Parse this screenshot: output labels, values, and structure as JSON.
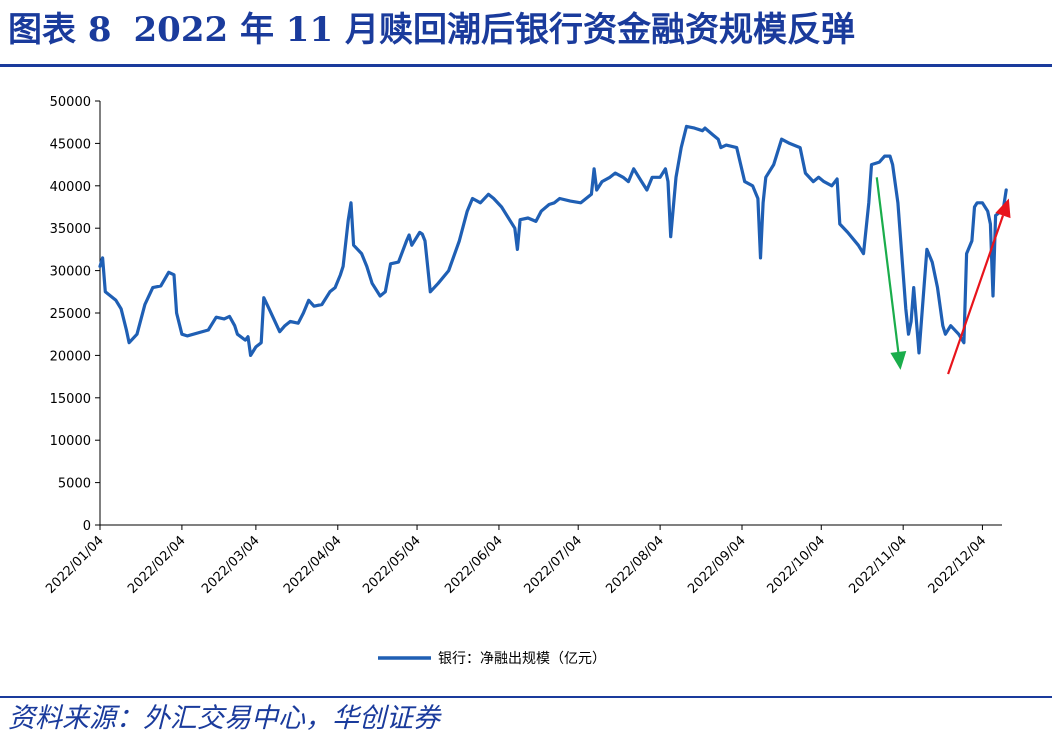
{
  "title": {
    "figure_label": "图表 8",
    "text": "2022 年 11 月赎回潮后银行资金融资规模反弹"
  },
  "source": "资料来源：外汇交易中心，华创证券",
  "colors": {
    "series": "#1f5fb4",
    "down_arrow": "#1aad4b",
    "up_arrow": "#e8141b",
    "frame": "#1a3b9c"
  },
  "chart_data": {
    "type": "line",
    "title": "",
    "xlabel": "",
    "ylabel": "",
    "ylim": [
      0,
      50000
    ],
    "y_ticks": [
      0,
      5000,
      10000,
      15000,
      20000,
      25000,
      30000,
      35000,
      40000,
      45000,
      50000
    ],
    "x_range": [
      "2022-01-04",
      "2022-12-08"
    ],
    "x_ticks": [
      "2022/01/04",
      "2022/02/04",
      "2022/03/04",
      "2022/04/04",
      "2022/05/04",
      "2022/06/04",
      "2022/07/04",
      "2022/08/04",
      "2022/09/04",
      "2022/10/04",
      "2022/11/04",
      "2022/12/04"
    ],
    "grid": false,
    "legend_position": "bottom",
    "series": [
      {
        "name": "银行：净融出规模（亿元）",
        "points": [
          [
            "2022-01-04",
            30500
          ],
          [
            "2022-01-05",
            31500
          ],
          [
            "2022-01-06",
            27500
          ],
          [
            "2022-01-10",
            26500
          ],
          [
            "2022-01-12",
            25500
          ],
          [
            "2022-01-14",
            23000
          ],
          [
            "2022-01-15",
            21500
          ],
          [
            "2022-01-18",
            22500
          ],
          [
            "2022-01-21",
            26000
          ],
          [
            "2022-01-24",
            28000
          ],
          [
            "2022-01-27",
            28200
          ],
          [
            "2022-01-30",
            29800
          ],
          [
            "2022-02-01",
            29500
          ],
          [
            "2022-02-02",
            25000
          ],
          [
            "2022-02-04",
            22500
          ],
          [
            "2022-02-06",
            22300
          ],
          [
            "2022-02-14",
            23000
          ],
          [
            "2022-02-17",
            24500
          ],
          [
            "2022-02-20",
            24300
          ],
          [
            "2022-02-22",
            24600
          ],
          [
            "2022-02-24",
            23500
          ],
          [
            "2022-02-25",
            22500
          ],
          [
            "2022-02-28",
            21800
          ],
          [
            "2022-03-01",
            22200
          ],
          [
            "2022-03-02",
            20000
          ],
          [
            "2022-03-04",
            21000
          ],
          [
            "2022-03-06",
            21500
          ],
          [
            "2022-03-07",
            26800
          ],
          [
            "2022-03-09",
            25500
          ],
          [
            "2022-03-13",
            22800
          ],
          [
            "2022-03-15",
            23500
          ],
          [
            "2022-03-17",
            24000
          ],
          [
            "2022-03-20",
            23800
          ],
          [
            "2022-03-22",
            25000
          ],
          [
            "2022-03-24",
            26500
          ],
          [
            "2022-03-26",
            25800
          ],
          [
            "2022-03-29",
            26000
          ],
          [
            "2022-04-01",
            27500
          ],
          [
            "2022-04-03",
            28000
          ],
          [
            "2022-04-05",
            29500
          ],
          [
            "2022-04-06",
            30500
          ],
          [
            "2022-04-08",
            36000
          ],
          [
            "2022-04-09",
            38000
          ],
          [
            "2022-04-10",
            33000
          ],
          [
            "2022-04-13",
            32000
          ],
          [
            "2022-04-15",
            30500
          ],
          [
            "2022-04-17",
            28500
          ],
          [
            "2022-04-20",
            27000
          ],
          [
            "2022-04-22",
            27500
          ],
          [
            "2022-04-24",
            30800
          ],
          [
            "2022-04-27",
            31000
          ],
          [
            "2022-04-30",
            33500
          ],
          [
            "2022-05-01",
            34200
          ],
          [
            "2022-05-02",
            33000
          ],
          [
            "2022-05-05",
            34500
          ],
          [
            "2022-05-06",
            34300
          ],
          [
            "2022-05-07",
            33500
          ],
          [
            "2022-05-09",
            27500
          ],
          [
            "2022-05-12",
            28500
          ],
          [
            "2022-05-16",
            30000
          ],
          [
            "2022-05-20",
            33500
          ],
          [
            "2022-05-23",
            37000
          ],
          [
            "2022-05-25",
            38500
          ],
          [
            "2022-05-28",
            38000
          ],
          [
            "2022-05-31",
            39000
          ],
          [
            "2022-06-02",
            38500
          ],
          [
            "2022-06-05",
            37500
          ],
          [
            "2022-06-08",
            36000
          ],
          [
            "2022-06-10",
            35000
          ],
          [
            "2022-06-11",
            32500
          ],
          [
            "2022-06-12",
            36000
          ],
          [
            "2022-06-15",
            36200
          ],
          [
            "2022-06-18",
            35800
          ],
          [
            "2022-06-20",
            37000
          ],
          [
            "2022-06-23",
            37800
          ],
          [
            "2022-06-25",
            38000
          ],
          [
            "2022-06-27",
            38500
          ],
          [
            "2022-07-01",
            38200
          ],
          [
            "2022-07-05",
            38000
          ],
          [
            "2022-07-07",
            38500
          ],
          [
            "2022-07-09",
            39000
          ],
          [
            "2022-07-10",
            42000
          ],
          [
            "2022-07-11",
            39500
          ],
          [
            "2022-07-13",
            40500
          ],
          [
            "2022-07-16",
            41000
          ],
          [
            "2022-07-18",
            41500
          ],
          [
            "2022-07-21",
            41000
          ],
          [
            "2022-07-23",
            40500
          ],
          [
            "2022-07-25",
            42000
          ],
          [
            "2022-07-28",
            40500
          ],
          [
            "2022-07-30",
            39500
          ],
          [
            "2022-08-01",
            41000
          ],
          [
            "2022-08-04",
            41000
          ],
          [
            "2022-08-06",
            42000
          ],
          [
            "2022-08-07",
            40500
          ],
          [
            "2022-08-08",
            34000
          ],
          [
            "2022-08-10",
            41000
          ],
          [
            "2022-08-12",
            44500
          ],
          [
            "2022-08-14",
            47000
          ],
          [
            "2022-08-17",
            46800
          ],
          [
            "2022-08-20",
            46500
          ],
          [
            "2022-08-21",
            46800
          ],
          [
            "2022-08-24",
            46000
          ],
          [
            "2022-08-26",
            45500
          ],
          [
            "2022-08-27",
            44500
          ],
          [
            "2022-08-29",
            44800
          ],
          [
            "2022-09-02",
            44500
          ],
          [
            "2022-09-05",
            40500
          ],
          [
            "2022-09-08",
            40000
          ],
          [
            "2022-09-10",
            38500
          ],
          [
            "2022-09-11",
            31500
          ],
          [
            "2022-09-12",
            38000
          ],
          [
            "2022-09-13",
            41000
          ],
          [
            "2022-09-16",
            42500
          ],
          [
            "2022-09-19",
            45500
          ],
          [
            "2022-09-22",
            45000
          ],
          [
            "2022-09-26",
            44500
          ],
          [
            "2022-09-28",
            41500
          ],
          [
            "2022-10-01",
            40500
          ],
          [
            "2022-10-03",
            41000
          ],
          [
            "2022-10-05",
            40500
          ],
          [
            "2022-10-08",
            40000
          ],
          [
            "2022-10-10",
            40800
          ],
          [
            "2022-10-11",
            35500
          ],
          [
            "2022-10-14",
            34500
          ],
          [
            "2022-10-18",
            33000
          ],
          [
            "2022-10-20",
            32000
          ],
          [
            "2022-10-22",
            38000
          ],
          [
            "2022-10-23",
            42500
          ],
          [
            "2022-10-26",
            42800
          ],
          [
            "2022-10-28",
            43500
          ],
          [
            "2022-10-30",
            43500
          ],
          [
            "2022-10-31",
            42500
          ],
          [
            "2022-11-02",
            38000
          ],
          [
            "2022-11-05",
            25500
          ],
          [
            "2022-11-06",
            22500
          ],
          [
            "2022-11-07",
            24000
          ],
          [
            "2022-11-08",
            28000
          ],
          [
            "2022-11-10",
            20300
          ],
          [
            "2022-11-12",
            28500
          ],
          [
            "2022-11-13",
            32500
          ],
          [
            "2022-11-15",
            31000
          ],
          [
            "2022-11-17",
            28000
          ],
          [
            "2022-11-19",
            23500
          ],
          [
            "2022-11-20",
            22500
          ],
          [
            "2022-11-22",
            23500
          ],
          [
            "2022-11-25",
            22500
          ],
          [
            "2022-11-27",
            21500
          ],
          [
            "2022-11-28",
            32000
          ],
          [
            "2022-11-30",
            33500
          ],
          [
            "2022-12-01",
            37500
          ],
          [
            "2022-12-02",
            38000
          ],
          [
            "2022-12-04",
            38000
          ],
          [
            "2022-12-06",
            37000
          ],
          [
            "2022-12-07",
            35500
          ],
          [
            "2022-12-08",
            27000
          ],
          [
            "2022-12-09",
            36500
          ],
          [
            "2022-12-11",
            37000
          ],
          [
            "2022-12-12",
            37500
          ],
          [
            "2022-12-13",
            39500
          ]
        ]
      }
    ],
    "annotations": [
      {
        "type": "arrow",
        "direction": "down",
        "color": "#1aad4b",
        "from": [
          "2022-10-25",
          41000
        ],
        "to": [
          "2022-11-03",
          18300
        ]
      },
      {
        "type": "arrow",
        "direction": "up",
        "color": "#e8141b",
        "from": [
          "2022-11-21",
          17800
        ],
        "to": [
          "2022-12-14",
          38500
        ]
      }
    ]
  }
}
